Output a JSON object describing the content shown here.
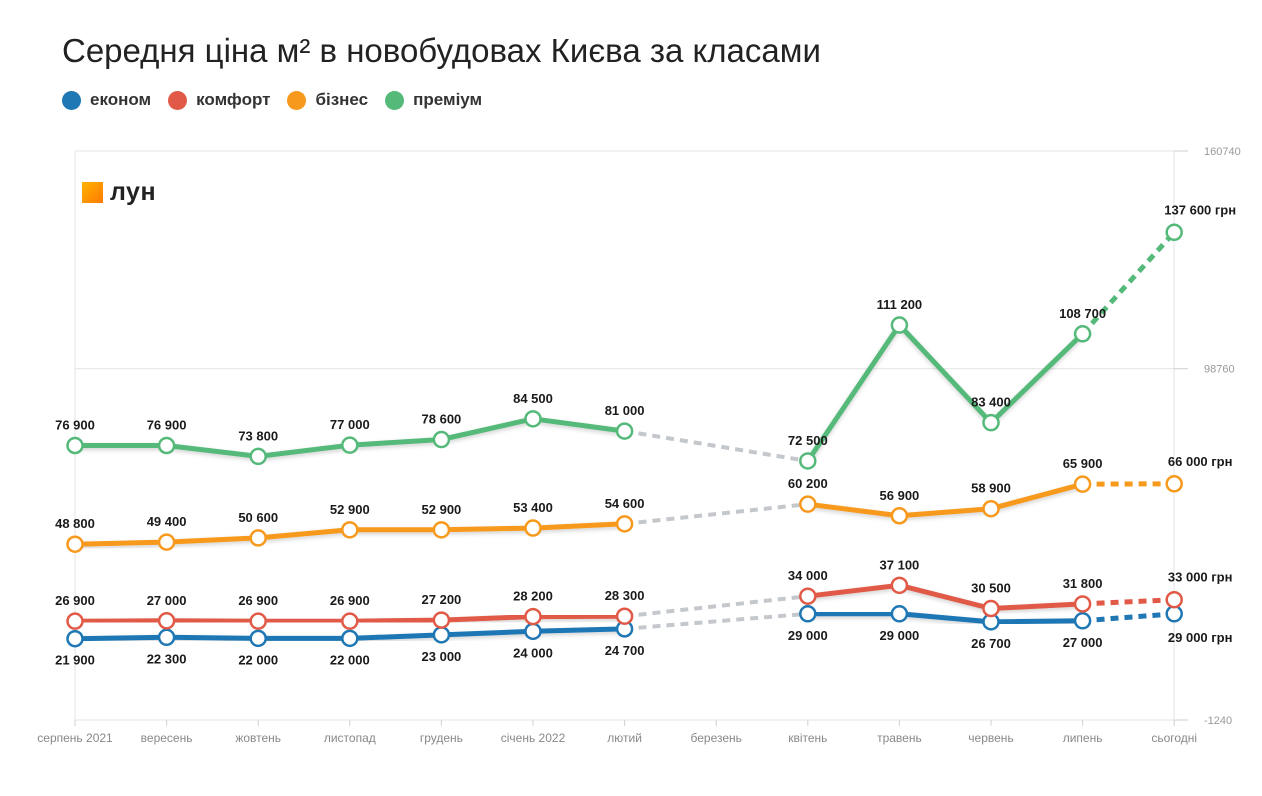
{
  "title": "Середня ціна м² в новобудовах Києва за класами",
  "logo": {
    "text": "лун"
  },
  "chart_data": {
    "type": "line",
    "categories": [
      "серпень 2021",
      "вересень",
      "жовтень",
      "листопад",
      "грудень",
      "січень 2022",
      "лютий",
      "березень",
      "квітень",
      "травень",
      "червень",
      "липень",
      "сьогодні"
    ],
    "y_ticks": [
      "160740",
      "98760",
      "-1240"
    ],
    "ylim": [
      -1240,
      160740
    ],
    "gap_index": 7,
    "grid": true,
    "legend_position": "top-left",
    "series": [
      {
        "name": "економ",
        "color": "#1f77b4",
        "values": [
          21900,
          22300,
          22000,
          22000,
          23000,
          24000,
          24700,
          null,
          29000,
          29000,
          26700,
          27000,
          29000
        ],
        "labels": [
          "21 900",
          "22 300",
          "22 000",
          "22 000",
          "23 000",
          "24 000",
          "24 700",
          "",
          "29 000",
          "29 000",
          "26 700",
          "27 000",
          "29 000 грн"
        ]
      },
      {
        "name": "комфорт",
        "color": "#e05a47",
        "values": [
          26900,
          27000,
          26900,
          26900,
          27200,
          28200,
          28300,
          null,
          34000,
          37100,
          30500,
          31800,
          33000
        ],
        "labels": [
          "26 900",
          "27 000",
          "26 900",
          "26 900",
          "27 200",
          "28 200",
          "28 300",
          "",
          "34 000",
          "37 100",
          "30 500",
          "31 800",
          "33 000 грн"
        ]
      },
      {
        "name": "бізнес",
        "color": "#f7991c",
        "values": [
          48800,
          49400,
          50600,
          52900,
          52900,
          53400,
          54600,
          null,
          60200,
          56900,
          58900,
          65900,
          66000
        ],
        "labels": [
          "48 800",
          "49 400",
          "50 600",
          "52 900",
          "52 900",
          "53 400",
          "54 600",
          "",
          "60 200",
          "56 900",
          "58 900",
          "65 900",
          "66 000 грн"
        ]
      },
      {
        "name": "преміум",
        "color": "#55b97a",
        "values": [
          76900,
          76900,
          73800,
          77000,
          78600,
          84500,
          81000,
          null,
          72500,
          111200,
          83400,
          108700,
          137600
        ],
        "labels": [
          "76 900",
          "76 900",
          "73 800",
          "77 000",
          "78 600",
          "84 500",
          "81 000",
          "",
          "72 500",
          "111 200",
          "83 400",
          "108 700",
          "137 600 грн"
        ]
      }
    ]
  }
}
